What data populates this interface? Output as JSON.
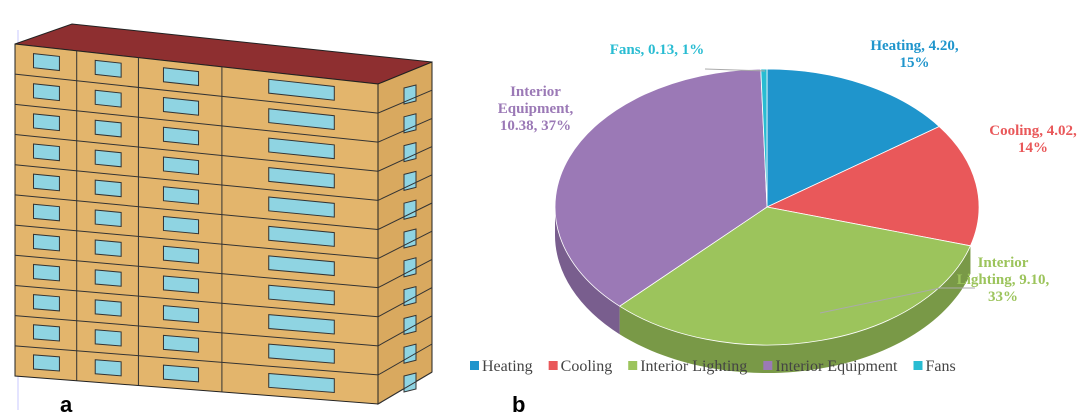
{
  "panel_labels": [
    "a",
    "b"
  ],
  "chart_data": {
    "type": "pie",
    "categories": [
      "Heating",
      "Cooling",
      "Interior Lighting",
      "Interior Equipment",
      "Fans"
    ],
    "values": [
      4.2,
      4.02,
      9.1,
      10.38,
      0.13
    ],
    "value_labels": [
      "Heating, 4.20, 15%",
      "Cooling, 4.02, 14%",
      "Interior Lighting, 9.10, 33%",
      "Interior Equipment, 10.38, 37%",
      "Fans, 0.13, 1%"
    ],
    "colors": [
      "#1f95cc",
      "#e9585a",
      "#9cc45c",
      "#9b79b6",
      "#29bcd2"
    ]
  }
}
